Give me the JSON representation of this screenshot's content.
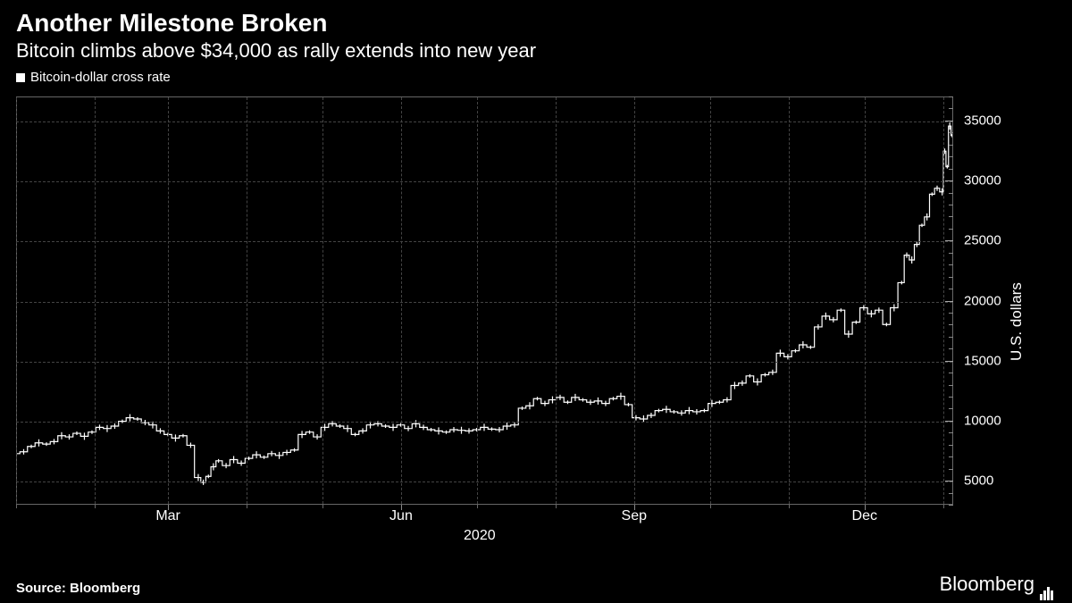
{
  "header": {
    "title": "Another Milestone Broken",
    "subtitle": "Bitcoin climbs above $34,000 as rally extends into new year"
  },
  "legend": {
    "label": "Bitcoin-dollar cross rate",
    "marker_color": "#ffffff"
  },
  "chart": {
    "type": "line",
    "line_color": "#ffffff",
    "line_width": 1.2,
    "background_color": "#000000",
    "grid_color": "#444444",
    "grid_dash": "4,4",
    "border_color": "#666666",
    "x": {
      "min": 0,
      "max": 370,
      "month_ticks": [
        {
          "pos": 0,
          "label": ""
        },
        {
          "pos": 31,
          "label": ""
        },
        {
          "pos": 60,
          "label": "Mar"
        },
        {
          "pos": 91,
          "label": ""
        },
        {
          "pos": 121,
          "label": ""
        },
        {
          "pos": 152,
          "label": "Jun"
        },
        {
          "pos": 182,
          "label": ""
        },
        {
          "pos": 213,
          "label": ""
        },
        {
          "pos": 244,
          "label": "Sep"
        },
        {
          "pos": 274,
          "label": ""
        },
        {
          "pos": 305,
          "label": ""
        },
        {
          "pos": 335,
          "label": "Dec"
        },
        {
          "pos": 366,
          "label": ""
        }
      ],
      "year_label": "2020",
      "year_pos": 183
    },
    "y": {
      "min": 3000,
      "max": 37000,
      "ticks": [
        5000,
        10000,
        15000,
        20000,
        25000,
        30000,
        35000
      ],
      "tick_labels": [
        "5000",
        "10000",
        "15000",
        "20000",
        "25000",
        "30000",
        "35000"
      ],
      "axis_label": "U.S. dollars",
      "tick_color": "#ffffff",
      "label_fontsize": 17
    },
    "series": [
      [
        0,
        7200
      ],
      [
        3,
        7350
      ],
      [
        6,
        7800
      ],
      [
        9,
        8100
      ],
      [
        12,
        8000
      ],
      [
        15,
        8200
      ],
      [
        18,
        8700
      ],
      [
        21,
        8600
      ],
      [
        24,
        8900
      ],
      [
        27,
        8650
      ],
      [
        30,
        9000
      ],
      [
        33,
        9400
      ],
      [
        36,
        9300
      ],
      [
        39,
        9500
      ],
      [
        42,
        9900
      ],
      [
        45,
        10200
      ],
      [
        48,
        10100
      ],
      [
        51,
        9800
      ],
      [
        54,
        9600
      ],
      [
        57,
        9100
      ],
      [
        60,
        8800
      ],
      [
        63,
        8500
      ],
      [
        66,
        8700
      ],
      [
        69,
        7900
      ],
      [
        72,
        5200
      ],
      [
        74,
        4800
      ],
      [
        76,
        5300
      ],
      [
        78,
        6100
      ],
      [
        80,
        6600
      ],
      [
        83,
        6200
      ],
      [
        86,
        6700
      ],
      [
        89,
        6400
      ],
      [
        92,
        6800
      ],
      [
        95,
        7100
      ],
      [
        98,
        6900
      ],
      [
        101,
        7200
      ],
      [
        104,
        7050
      ],
      [
        107,
        7300
      ],
      [
        110,
        7500
      ],
      [
        113,
        8800
      ],
      [
        116,
        9000
      ],
      [
        119,
        8600
      ],
      [
        122,
        9400
      ],
      [
        125,
        9700
      ],
      [
        128,
        9500
      ],
      [
        131,
        9300
      ],
      [
        134,
        8800
      ],
      [
        137,
        9100
      ],
      [
        140,
        9600
      ],
      [
        143,
        9700
      ],
      [
        146,
        9500
      ],
      [
        149,
        9400
      ],
      [
        152,
        9600
      ],
      [
        155,
        9300
      ],
      [
        158,
        9700
      ],
      [
        161,
        9400
      ],
      [
        164,
        9200
      ],
      [
        167,
        9100
      ],
      [
        170,
        9000
      ],
      [
        173,
        9200
      ],
      [
        176,
        9150
      ],
      [
        179,
        9100
      ],
      [
        182,
        9200
      ],
      [
        185,
        9400
      ],
      [
        188,
        9250
      ],
      [
        191,
        9200
      ],
      [
        194,
        9500
      ],
      [
        197,
        9600
      ],
      [
        200,
        11000
      ],
      [
        203,
        11200
      ],
      [
        206,
        11800
      ],
      [
        209,
        11400
      ],
      [
        212,
        11700
      ],
      [
        215,
        11900
      ],
      [
        218,
        11500
      ],
      [
        221,
        11900
      ],
      [
        224,
        11700
      ],
      [
        227,
        11500
      ],
      [
        230,
        11600
      ],
      [
        233,
        11400
      ],
      [
        236,
        11800
      ],
      [
        239,
        12000
      ],
      [
        242,
        11300
      ],
      [
        245,
        10200
      ],
      [
        248,
        10100
      ],
      [
        251,
        10400
      ],
      [
        254,
        10800
      ],
      [
        257,
        10900
      ],
      [
        260,
        10700
      ],
      [
        263,
        10600
      ],
      [
        266,
        10800
      ],
      [
        269,
        10700
      ],
      [
        272,
        10800
      ],
      [
        275,
        11400
      ],
      [
        278,
        11500
      ],
      [
        281,
        11700
      ],
      [
        284,
        12900
      ],
      [
        287,
        13100
      ],
      [
        290,
        13700
      ],
      [
        293,
        13200
      ],
      [
        296,
        13800
      ],
      [
        299,
        14000
      ],
      [
        302,
        15600
      ],
      [
        305,
        15300
      ],
      [
        308,
        15800
      ],
      [
        311,
        16300
      ],
      [
        314,
        16100
      ],
      [
        317,
        17800
      ],
      [
        320,
        18700
      ],
      [
        323,
        18400
      ],
      [
        326,
        19200
      ],
      [
        329,
        17200
      ],
      [
        332,
        18200
      ],
      [
        335,
        19400
      ],
      [
        338,
        18900
      ],
      [
        341,
        19200
      ],
      [
        344,
        18000
      ],
      [
        347,
        19400
      ],
      [
        350,
        21500
      ],
      [
        352,
        23800
      ],
      [
        354,
        23400
      ],
      [
        356,
        24700
      ],
      [
        358,
        26300
      ],
      [
        360,
        27000
      ],
      [
        362,
        28900
      ],
      [
        364,
        29400
      ],
      [
        366,
        29100
      ],
      [
        367,
        32500
      ],
      [
        368,
        31200
      ],
      [
        369,
        34600
      ],
      [
        370,
        33800
      ]
    ]
  },
  "footer": {
    "source": "Source: Bloomberg",
    "brand": "Bloomberg"
  }
}
